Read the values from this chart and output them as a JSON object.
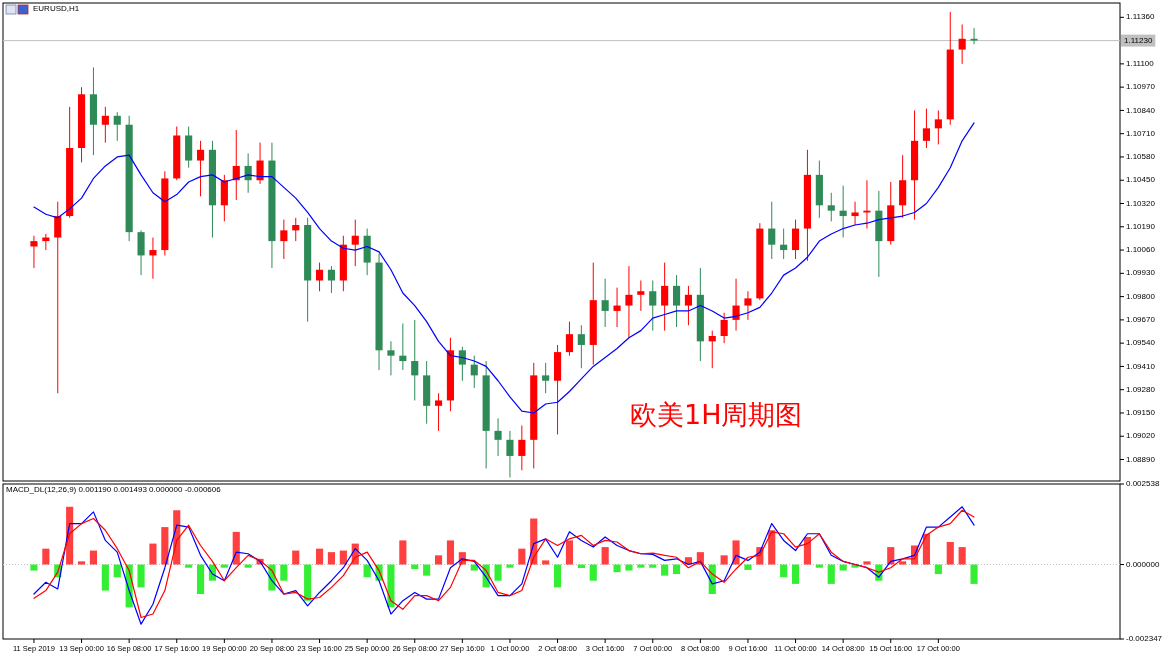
{
  "chart_data": [
    {
      "type": "candlestick",
      "title": "EURUSD,H1",
      "categories": [
        null,
        null,
        null,
        null,
        null,
        null,
        null,
        null,
        null,
        null,
        null,
        null,
        null,
        null,
        null,
        null,
        null,
        null,
        null,
        null,
        null,
        null,
        null,
        null,
        null,
        null,
        null,
        null,
        null,
        null,
        null,
        null,
        null,
        null,
        null,
        null,
        null,
        null,
        null,
        null,
        null,
        null,
        null,
        null,
        null,
        null,
        null,
        null,
        null,
        null,
        null,
        null,
        null,
        null,
        null,
        null,
        null,
        null,
        null,
        null,
        null,
        null,
        null,
        null,
        null,
        null,
        null,
        null,
        null,
        null,
        null,
        null,
        null,
        null,
        null,
        null,
        null,
        null,
        null,
        null
      ],
      "ohlc": [
        [
          1.1008,
          1.1014,
          1.0996,
          1.1011
        ],
        [
          1.1011,
          1.1015,
          1.1006,
          1.1013
        ],
        [
          1.1013,
          1.1033,
          1.0926,
          1.1025
        ],
        [
          1.1025,
          1.1086,
          1.1024,
          1.1063
        ],
        [
          1.1063,
          1.1097,
          1.1055,
          1.1093
        ],
        [
          1.1093,
          1.1108,
          1.1059,
          1.1076
        ],
        [
          1.1076,
          1.1086,
          1.1066,
          1.1081
        ],
        [
          1.1081,
          1.1083,
          1.1067,
          1.1076
        ],
        [
          1.1076,
          1.1081,
          1.1011,
          1.1016
        ],
        [
          1.1016,
          1.1017,
          1.0992,
          1.1003
        ],
        [
          1.1003,
          1.1013,
          1.099,
          1.1006
        ],
        [
          1.1006,
          1.105,
          1.1003,
          1.1046
        ],
        [
          1.1046,
          1.1075,
          1.1045,
          1.107
        ],
        [
          1.107,
          1.1075,
          1.1052,
          1.1056
        ],
        [
          1.1056,
          1.1067,
          1.1036,
          1.1062
        ],
        [
          1.1062,
          1.1067,
          1.1013,
          1.1031
        ],
        [
          1.1031,
          1.1048,
          1.1022,
          1.1045
        ],
        [
          1.1045,
          1.1073,
          1.1034,
          1.1053
        ],
        [
          1.1053,
          1.106,
          1.1038,
          1.1045
        ],
        [
          1.1045,
          1.1066,
          1.1043,
          1.1056
        ],
        [
          1.1056,
          1.1066,
          1.0996,
          1.1011
        ],
        [
          1.1011,
          1.1023,
          1.1001,
          1.1017
        ],
        [
          1.1017,
          1.1024,
          1.1011,
          1.102
        ],
        [
          1.102,
          1.1024,
          1.0966,
          1.0989
        ],
        [
          1.0989,
          1.0999,
          1.0983,
          1.0995
        ],
        [
          1.0995,
          1.0997,
          1.0982,
          1.0989
        ],
        [
          1.0989,
          1.1014,
          1.0983,
          1.1009
        ],
        [
          1.1009,
          1.1023,
          1.0997,
          1.1014
        ],
        [
          1.1014,
          1.1018,
          1.0992,
          1.0999
        ],
        [
          1.0999,
          1.1004,
          1.0939,
          1.095
        ],
        [
          1.095,
          1.0955,
          1.0936,
          1.0947
        ],
        [
          1.0947,
          1.0965,
          1.0939,
          1.0944
        ],
        [
          1.0944,
          1.0967,
          1.0922,
          1.0936
        ],
        [
          1.0936,
          1.0944,
          1.0909,
          1.0919
        ],
        [
          1.0919,
          1.0926,
          1.0905,
          1.0922
        ],
        [
          1.0922,
          1.0957,
          1.0916,
          1.095
        ],
        [
          1.095,
          1.0952,
          1.0933,
          1.0942
        ],
        [
          1.0942,
          1.0947,
          1.0929,
          1.0936
        ],
        [
          1.0936,
          1.0944,
          1.0884,
          1.0905
        ],
        [
          1.0905,
          1.0912,
          1.0891,
          1.09
        ],
        [
          1.09,
          1.0905,
          1.0879,
          1.0891
        ],
        [
          1.0891,
          1.0908,
          1.0883,
          1.09
        ],
        [
          1.09,
          1.0943,
          1.0884,
          1.0936
        ],
        [
          1.0936,
          1.0943,
          1.0926,
          1.0933
        ],
        [
          1.0933,
          1.0953,
          1.0903,
          1.0949
        ],
        [
          1.0949,
          1.0966,
          1.0947,
          1.0959
        ],
        [
          1.0959,
          1.0964,
          1.094,
          1.0953
        ],
        [
          1.0953,
          1.0999,
          1.0942,
          1.0978
        ],
        [
          1.0978,
          1.099,
          1.0963,
          1.0972
        ],
        [
          1.0972,
          1.0985,
          1.0963,
          1.0975
        ],
        [
          1.0975,
          1.0997,
          1.0957,
          1.0981
        ],
        [
          1.0981,
          1.0989,
          1.0972,
          1.0983
        ],
        [
          1.0983,
          1.0989,
          1.0961,
          1.0975
        ],
        [
          1.0975,
          1.0999,
          1.0961,
          1.0986
        ],
        [
          1.0986,
          1.0992,
          1.0963,
          1.0975
        ],
        [
          1.0975,
          1.0986,
          1.0964,
          1.0981
        ],
        [
          1.0981,
          1.0996,
          1.0944,
          1.0955
        ],
        [
          1.0955,
          1.0961,
          1.094,
          1.0958
        ],
        [
          1.0958,
          1.0971,
          1.0954,
          1.0967
        ],
        [
          1.0967,
          1.099,
          1.0961,
          1.0975
        ],
        [
          1.0975,
          1.0983,
          1.0967,
          1.0979
        ],
        [
          1.0979,
          1.1021,
          1.0978,
          1.1018
        ],
        [
          1.1018,
          1.1033,
          1.1001,
          1.1009
        ],
        [
          1.1009,
          1.1018,
          1.1001,
          1.1006
        ],
        [
          1.1006,
          1.1023,
          1.1001,
          1.1018
        ],
        [
          1.1018,
          1.1062,
          1.1,
          1.1048
        ],
        [
          1.1048,
          1.1056,
          1.1024,
          1.1031
        ],
        [
          1.1031,
          1.1038,
          1.1022,
          1.1028
        ],
        [
          1.1028,
          1.1042,
          1.1013,
          1.1025
        ],
        [
          1.1025,
          1.1033,
          1.102,
          1.1027
        ],
        [
          1.1027,
          1.1045,
          1.1018,
          1.1028
        ],
        [
          1.1028,
          1.1039,
          1.0991,
          1.1011
        ],
        [
          1.1011,
          1.1044,
          1.1009,
          1.1031
        ],
        [
          1.1031,
          1.1059,
          1.1024,
          1.1045
        ],
        [
          1.1045,
          1.1084,
          1.1023,
          1.1067
        ],
        [
          1.1067,
          1.1085,
          1.1063,
          1.1074
        ],
        [
          1.1074,
          1.1084,
          1.1065,
          1.1079
        ],
        [
          1.1079,
          1.1139,
          1.1076,
          1.1118
        ],
        [
          1.1118,
          1.1132,
          1.111,
          1.1124
        ],
        [
          1.1124,
          1.113,
          1.1121,
          1.1123
        ]
      ],
      "colors": [
        "#ff0000",
        "#ff0000",
        "#ff0000",
        "#ff0000",
        "#ff0000",
        "#2e8b57",
        "#ff0000",
        "#2e8b57",
        "#2e8b57",
        "#2e8b57",
        "#ff0000",
        "#ff0000",
        "#ff0000",
        "#2e8b57",
        "#ff0000",
        "#2e8b57",
        "#ff0000",
        "#ff0000",
        "#2e8b57",
        "#ff0000",
        "#2e8b57",
        "#ff0000",
        "#ff0000",
        "#2e8b57",
        "#ff0000",
        "#2e8b57",
        "#ff0000",
        "#ff0000",
        "#2e8b57",
        "#2e8b57",
        "#2e8b57",
        "#2e8b57",
        "#2e8b57",
        "#2e8b57",
        "#ff0000",
        "#ff0000",
        "#2e8b57",
        "#2e8b57",
        "#2e8b57",
        "#2e8b57",
        "#2e8b57",
        "#ff0000",
        "#ff0000",
        "#2e8b57",
        "#ff0000",
        "#ff0000",
        "#2e8b57",
        "#ff0000",
        "#2e8b57",
        "#ff0000",
        "#ff0000",
        "#ff0000",
        "#2e8b57",
        "#ff0000",
        "#2e8b57",
        "#ff0000",
        "#2e8b57",
        "#ff0000",
        "#ff0000",
        "#ff0000",
        "#ff0000",
        "#ff0000",
        "#2e8b57",
        "#2e8b57",
        "#ff0000",
        "#ff0000",
        "#2e8b57",
        "#2e8b57",
        "#2e8b57",
        "#ff0000",
        "#ff0000",
        "#2e8b57",
        "#ff0000",
        "#ff0000",
        "#ff0000",
        "#ff0000",
        "#ff0000",
        "#ff0000",
        "#ff0000",
        "#2e8b57"
      ],
      "series": [
        {
          "type": "line",
          "color": "#0000ff",
          "values": [
            1.103,
            1.1026,
            1.1024,
            1.1029,
            1.1035,
            1.1046,
            1.1053,
            1.1058,
            1.1059,
            1.1048,
            1.1038,
            1.1033,
            1.1037,
            1.1044,
            1.1047,
            1.1048,
            1.1044,
            1.1046,
            1.1048,
            1.1047,
            1.1047,
            1.1041,
            1.1035,
            1.1027,
            1.1018,
            1.1011,
            1.1007,
            1.1006,
            1.1008,
            1.1005,
            1.0995,
            1.0982,
            1.0975,
            1.0966,
            1.0955,
            1.0947,
            1.0946,
            1.0944,
            1.0941,
            1.0933,
            1.0924,
            1.0916,
            1.0915,
            1.092,
            1.0921,
            1.0927,
            1.0934,
            1.0941,
            1.0946,
            1.0951,
            1.0957,
            1.0961,
            1.0968,
            1.097,
            1.0972,
            1.0972,
            1.0975,
            1.0972,
            1.0968,
            1.0969,
            1.0971,
            1.0974,
            1.0982,
            1.0992,
            1.0996,
            1.1002,
            1.1011,
            1.1015,
            1.1018,
            1.102,
            1.1021,
            1.1023,
            1.1024,
            1.1025,
            1.1027,
            1.1032,
            1.1041,
            1.1052,
            1.1067,
            1.1077
          ]
        }
      ],
      "ylim": [
        1.0877,
        1.1144
      ],
      "yticks": [
        {
          "value": 1.0889,
          "label": "1.08890"
        },
        {
          "value": 1.0902,
          "label": "1.09020"
        },
        {
          "value": 1.0915,
          "label": "1.09150"
        },
        {
          "value": 1.0928,
          "label": "1.09280"
        },
        {
          "value": 1.0941,
          "label": "1.09410"
        },
        {
          "value": 1.0954,
          "label": "1.09540"
        },
        {
          "value": 1.0967,
          "label": "1.09670"
        },
        {
          "value": 1.098,
          "label": "1.09800"
        },
        {
          "value": 1.0993,
          "label": "1.09930"
        },
        {
          "value": 1.1006,
          "label": "1.10060"
        },
        {
          "value": 1.1019,
          "label": "1.10190"
        },
        {
          "value": 1.1032,
          "label": "1.10320"
        },
        {
          "value": 1.1045,
          "label": "1.10450"
        },
        {
          "value": 1.1058,
          "label": "1.10580"
        },
        {
          "value": 1.1071,
          "label": "1.10710"
        },
        {
          "value": 1.1084,
          "label": "1.10840"
        },
        {
          "value": 1.1097,
          "label": "1.10970"
        },
        {
          "value": 1.111,
          "label": "1.11100"
        },
        {
          "value": 1.1136,
          "label": "1.11360"
        }
      ],
      "ref_lines": [
        {
          "axis": "y",
          "value": 1.1123,
          "label": "1.11230",
          "color": "#c0c0c0"
        }
      ],
      "annotations": [
        "欧美1H周期图"
      ]
    },
    {
      "type": "bar",
      "title": "MACD_DL(12,26,9) 0.001190 0.001493 0.000000 -0.000606",
      "categories": [
        "11 Sep 2019",
        null,
        null,
        null,
        "13 Sep 00:00",
        null,
        null,
        null,
        "16 Sep 08:00",
        null,
        null,
        null,
        "17 Sep 16:00",
        null,
        null,
        null,
        "19 Sep 00:00",
        null,
        null,
        null,
        "20 Sep 08:00",
        null,
        null,
        null,
        "23 Sep 16:00",
        null,
        null,
        null,
        "25 Sep 00:00",
        null,
        null,
        null,
        "26 Sep 08:00",
        null,
        null,
        null,
        "27 Sep 16:00",
        null,
        null,
        null,
        "1 Oct 00:00",
        null,
        null,
        null,
        "2 Oct 08:00",
        null,
        null,
        null,
        "3 Oct 16:00",
        null,
        null,
        null,
        "7 Oct 00:00",
        null,
        null,
        null,
        "8 Oct 08:00",
        null,
        null,
        null,
        "9 Oct 16:00",
        null,
        null,
        null,
        "11 Oct 00:00",
        null,
        null,
        null,
        "14 Oct 08:00",
        null,
        null,
        null,
        "15 Oct 16:00",
        null,
        null,
        null,
        "17 Oct 00:00",
        null,
        null,
        null
      ],
      "series": [
        {
          "type": "bar",
          "values": [
            -0.00019,
            0.0005,
            -0.0004,
            0.00182,
            0.0001,
            0.00044,
            -0.00082,
            -0.0004,
            -0.00135,
            -0.00072,
            0.00066,
            0.00118,
            0.00171,
            -0.0001,
            -0.00093,
            -0.00051,
            -0.0001,
            0.00103,
            -0.0001,
            0.00018,
            -0.00082,
            -0.00051,
            0.00044,
            -0.00114,
            0.0005,
            0.00039,
            0.00044,
            0.00066,
            -0.0004,
            -0.00051,
            -0.00135,
            0.00076,
            -0.00014,
            -0.00035,
            0.00029,
            0.00076,
            0.00039,
            -0.00019,
            -0.00072,
            -0.00051,
            -0.0001,
            0.0005,
            0.00145,
            0.00013,
            -0.00072,
            0.00076,
            -0.00011,
            -0.00051,
            0.00055,
            -0.00024,
            -0.00019,
            -0.0001,
            -0.0001,
            -0.00035,
            -0.0003,
            0.00023,
            0.00039,
            -0.00093,
            0.00029,
            0.00076,
            -0.00017,
            0.00055,
            0.00108,
            -0.0004,
            -0.00061,
            0.00087,
            -0.0001,
            -0.00061,
            -0.00019,
            -0.0001,
            0.0001,
            -0.00051,
            0.00055,
            0.0001,
            0.0006,
            0.00097,
            -0.0003,
            0.00071,
            0.00055,
            -0.00061
          ],
          "colors": [
            "#33ee33",
            "#ff4040",
            "#33ee33",
            "#ff4040",
            "#ff4040",
            "#ff4040",
            "#33ee33",
            "#33ee33",
            "#33ee33",
            "#33ee33",
            "#ff4040",
            "#ff4040",
            "#ff4040",
            "#33ee33",
            "#33ee33",
            "#33ee33",
            "#33ee33",
            "#ff4040",
            "#33ee33",
            "#ff4040",
            "#33ee33",
            "#33ee33",
            "#ff4040",
            "#33ee33",
            "#ff4040",
            "#ff4040",
            "#ff4040",
            "#ff4040",
            "#33ee33",
            "#33ee33",
            "#33ee33",
            "#ff4040",
            "#33ee33",
            "#33ee33",
            "#ff4040",
            "#ff4040",
            "#ff4040",
            "#33ee33",
            "#33ee33",
            "#33ee33",
            "#33ee33",
            "#ff4040",
            "#ff4040",
            "#ff4040",
            "#33ee33",
            "#ff4040",
            "#33ee33",
            "#33ee33",
            "#ff4040",
            "#33ee33",
            "#33ee33",
            "#33ee33",
            "#33ee33",
            "#33ee33",
            "#33ee33",
            "#ff4040",
            "#ff4040",
            "#33ee33",
            "#ff4040",
            "#ff4040",
            "#33ee33",
            "#ff4040",
            "#ff4040",
            "#33ee33",
            "#33ee33",
            "#ff4040",
            "#33ee33",
            "#33ee33",
            "#33ee33",
            "#33ee33",
            "#ff4040",
            "#33ee33",
            "#ff4040",
            "#ff4040",
            "#ff4040",
            "#ff4040",
            "#33ee33",
            "#ff4040",
            "#ff4040",
            "#33ee33"
          ]
        },
        {
          "type": "line",
          "color": "#0000ff",
          "values": [
            -0.00093,
            -0.00056,
            -0.00077,
            0.00129,
            0.00129,
            0.00166,
            0.00076,
            0.00039,
            -0.00082,
            -0.00188,
            -0.00125,
            -0.0001,
            0.00124,
            0.00118,
            0.00029,
            -0.0003,
            -0.00051,
            0.00039,
            0.00034,
            0.0001,
            -0.00051,
            -0.00093,
            -0.00082,
            -0.0013,
            -0.00088,
            -0.00051,
            -0.0001,
            0.0005,
            0.00013,
            -0.00051,
            -0.00156,
            -0.00114,
            -0.00088,
            -0.00109,
            -0.00109,
            -0.0001,
            0.00018,
            0.0001,
            -0.0004,
            -0.00098,
            -0.00098,
            -0.00061,
            0.00066,
            0.00081,
            0.00023,
            0.00103,
            0.00076,
            0.00055,
            0.00087,
            0.0006,
            0.00044,
            0.00034,
            0.00032,
            0.00013,
            0.00018,
            0,
            0.0001,
            -0.00061,
            -0.00051,
            0.00029,
            0.00013,
            0.00039,
            0.00129,
            0.00076,
            0.00044,
            0.00097,
            0.00097,
            0.00029,
            0.0001,
            0,
            -0.0001,
            -0.0004,
            0.0001,
            0.00018,
            0.00029,
            0.00118,
            0.00118,
            0.0015,
            0.00182,
            0.00124
          ]
        },
        {
          "type": "line",
          "color": "#ff0000",
          "values": [
            -0.00106,
            -0.00082,
            -0.00024,
            0.00097,
            0.00129,
            0.00145,
            0.00108,
            0.0005,
            -0.00019,
            -0.00167,
            -0.00156,
            -0.00082,
            0.00076,
            0.00124,
            0.0006,
            0.0001,
            -0.00051,
            -0.0001,
            0.00029,
            0.00013,
            -0.00019,
            -0.00093,
            -0.00088,
            -0.00109,
            -0.00104,
            -0.00072,
            -0.00035,
            0.00023,
            0.00039,
            -0.00019,
            -0.00114,
            -0.00141,
            -0.00098,
            -0.00098,
            -0.00114,
            -0.00072,
            0.00013,
            0.00013,
            -0.00019,
            -0.00088,
            -0.00098,
            -0.00082,
            0.00023,
            0.00081,
            0.0006,
            0.00081,
            0.00092,
            0.0006,
            0.00076,
            0.00071,
            0.00044,
            0.00034,
            0.00036,
            0.00029,
            0.00023,
            -0.0001,
            0.0001,
            -0.0003,
            -0.00056,
            -0.00014,
            0.00023,
            0.00029,
            0.00103,
            0.00097,
            0.00055,
            0.00066,
            0.00097,
            0.00039,
            0.0001,
            0,
            -0.0001,
            -0.00024,
            -0.0001,
            0.00018,
            0.00018,
            0.00092,
            0.00118,
            0.00129,
            0.00171,
            0.0015
          ]
        }
      ],
      "ylim": [
        -0.002347,
        0.002538
      ],
      "yticks": [
        -0.002347,
        {
          "value": 0,
          "label": "0.000000"
        },
        0.002538
      ],
      "ref_lines": [
        {
          "axis": "y",
          "value": 0,
          "color": "#c0c0c0",
          "line_style": "dotted"
        }
      ]
    }
  ]
}
